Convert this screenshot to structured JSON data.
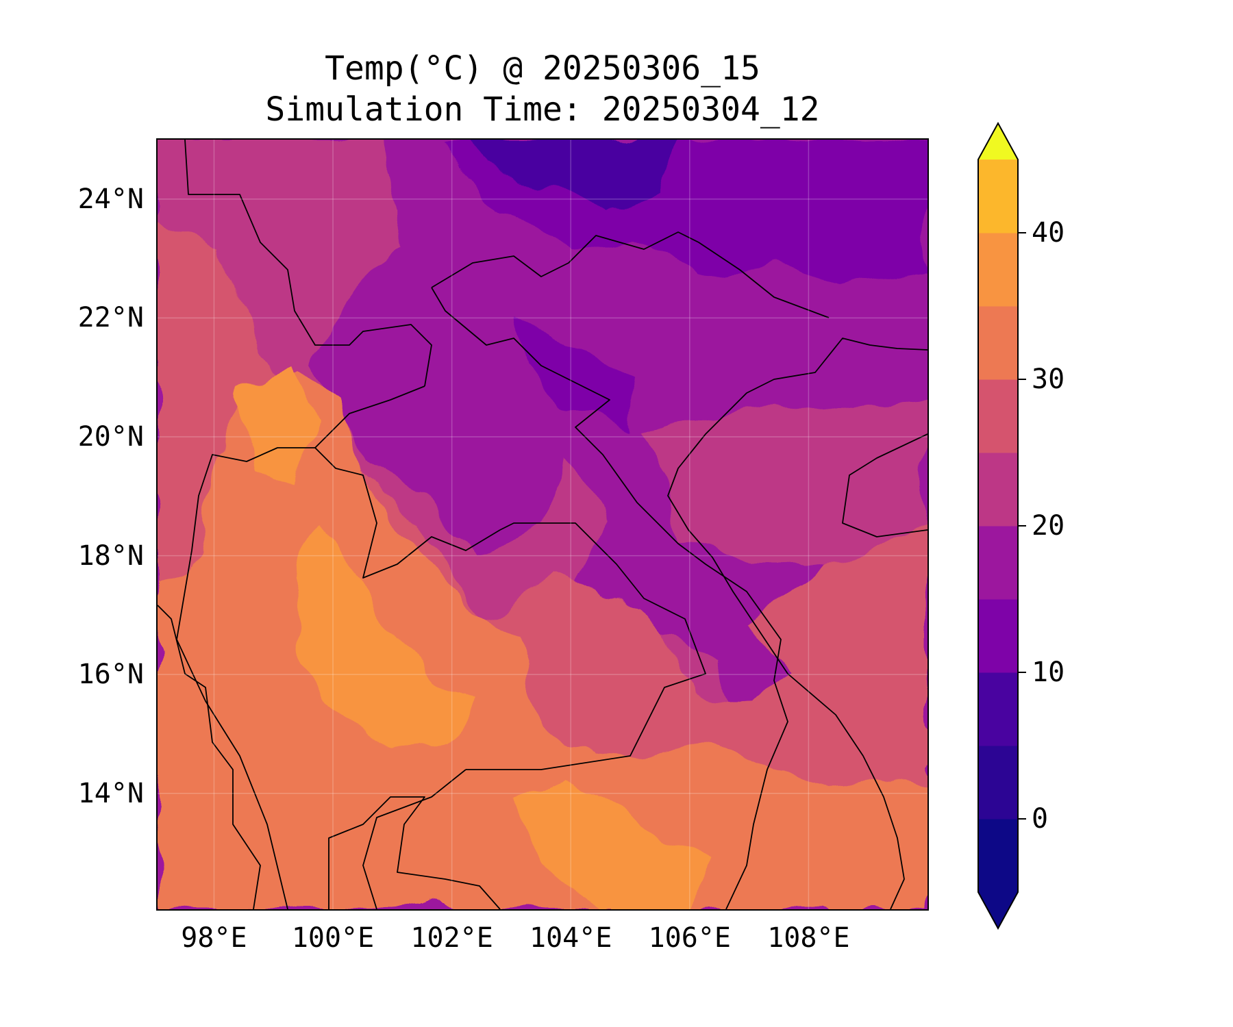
{
  "chart_data": {
    "type": "heatmap",
    "title": "Temp(°C) @ 20250306_15",
    "subtitle": "Simulation Time: 20250304_12",
    "x_axis": {
      "ticks": [
        98,
        100,
        102,
        104,
        106,
        108
      ],
      "tick_labels": [
        "98°E",
        "100°E",
        "102°E",
        "104°E",
        "106°E",
        "108°E"
      ],
      "range": [
        97.05,
        110.0
      ]
    },
    "y_axis": {
      "ticks": [
        14,
        16,
        18,
        20,
        22,
        24
      ],
      "tick_labels": [
        "14°N",
        "16°N",
        "18°N",
        "20°N",
        "22°N",
        "24°N"
      ],
      "range": [
        12.05,
        25.0
      ]
    },
    "grid": true,
    "colorbar": {
      "levels": [
        -5,
        0,
        5,
        10,
        15,
        20,
        25,
        30,
        35,
        40,
        45
      ],
      "ticks": [
        0,
        10,
        20,
        30,
        40
      ],
      "tick_labels": [
        "0",
        "10",
        "20",
        "30",
        "40"
      ],
      "extend": "both",
      "colors": [
        "#0d0887",
        "#2c0594",
        "#4903a0",
        "#7e03a8",
        "#9c179e",
        "#bd3786",
        "#d5546e",
        "#ed7953",
        "#f89441",
        "#fcb72c",
        "#f2e22a"
      ],
      "under_color": "#0d0887",
      "over_color": "#f0f921"
    }
  }
}
